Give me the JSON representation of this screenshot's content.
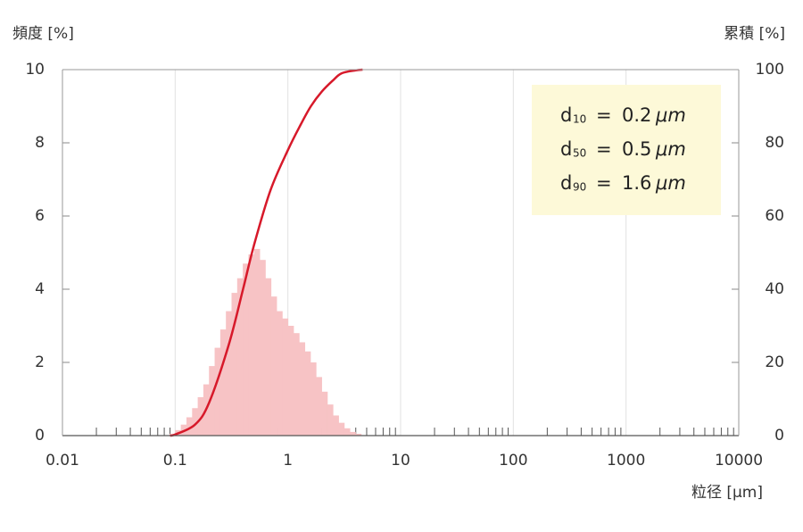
{
  "chart_data": {
    "type": "histogram",
    "y_label": "頻度 [%]",
    "y2_label": "累積 [%]",
    "x_label": "粒径 [μm]",
    "log_x": true,
    "grid_x": true,
    "minor_ticks": true,
    "xlim": [
      0.01,
      10000
    ],
    "xticks": [
      0.01,
      0.1,
      1,
      10,
      100,
      1000,
      10000
    ],
    "ylim": [
      0,
      10
    ],
    "yticks": [
      0,
      2,
      4,
      6,
      8,
      10
    ],
    "y2lim": [
      0,
      100
    ],
    "y2ticks": [
      0,
      20,
      40,
      60,
      80,
      100
    ],
    "color": "#f7c3c5",
    "bins": [
      0.0891,
      0.1,
      0.1122,
      0.1259,
      0.1413,
      0.1585,
      0.1778,
      0.1995,
      0.2239,
      0.2512,
      0.2818,
      0.3162,
      0.3548,
      0.3981,
      0.4467,
      0.5012,
      0.5623,
      0.631,
      0.7079,
      0.7943,
      0.8913,
      1,
      1.122,
      1.259,
      1.413,
      1.585,
      1.778,
      1.995,
      2.239,
      2.512,
      2.818,
      3.162,
      3.548,
      3.981,
      4.467
    ],
    "values": [
      0.05,
      0.15,
      0.3,
      0.5,
      0.75,
      1.05,
      1.4,
      1.9,
      2.4,
      2.9,
      3.4,
      3.9,
      4.3,
      4.7,
      4.95,
      5.1,
      4.8,
      4.3,
      3.8,
      3.4,
      3.2,
      3.0,
      2.8,
      2.55,
      2.3,
      2.0,
      1.6,
      1.2,
      0.85,
      0.55,
      0.35,
      0.2,
      0.1,
      0.05
    ],
    "curve": {
      "axis": "y2",
      "color": "#d7192a",
      "x": [
        0.09,
        0.1,
        0.15,
        0.2,
        0.3,
        0.4,
        0.5,
        0.7,
        1,
        1.3,
        1.6,
        2,
        2.5,
        3,
        4,
        4.6
      ],
      "values": [
        0,
        0.3,
        3,
        9,
        25,
        40,
        52,
        67,
        78,
        85,
        90,
        94,
        97,
        99,
        99.8,
        100
      ]
    },
    "annotations": [
      {
        "symbol": "d",
        "sub": "10",
        "eq": "=",
        "value": "0.2",
        "unit": "μm"
      },
      {
        "symbol": "d",
        "sub": "50",
        "eq": "=",
        "value": "0.5",
        "unit": "μm"
      },
      {
        "symbol": "d",
        "sub": "90",
        "eq": "=",
        "value": "1.6",
        "unit": "μm"
      }
    ],
    "annotation_color": "#fdf9d8"
  }
}
